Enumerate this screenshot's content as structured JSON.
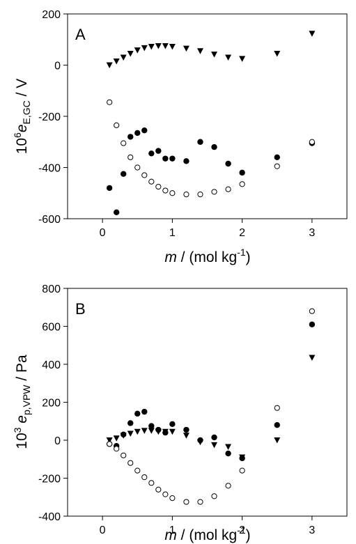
{
  "chart_data": [
    {
      "panel": "A",
      "type": "scatter",
      "title": "",
      "xlabel": "m / (mol kg-1)",
      "ylabel": "10^6 e_E,GC / V",
      "xlim": [
        -0.5,
        3.5
      ],
      "ylim": [
        -600,
        200
      ],
      "xticks": [
        0,
        1,
        2,
        3
      ],
      "yticks": [
        -600,
        -400,
        -200,
        0,
        200
      ],
      "grid": false,
      "legend": "none",
      "series": [
        {
          "marker": "triangle-down-filled",
          "points": [
            [
              0.1,
              0
            ],
            [
              0.2,
              15
            ],
            [
              0.3,
              30
            ],
            [
              0.4,
              45
            ],
            [
              0.5,
              58
            ],
            [
              0.6,
              67
            ],
            [
              0.7,
              72
            ],
            [
              0.8,
              75
            ],
            [
              0.9,
              75
            ],
            [
              1.0,
              72
            ],
            [
              1.2,
              65
            ],
            [
              1.4,
              55
            ],
            [
              1.6,
              42
            ],
            [
              1.8,
              30
            ],
            [
              2.0,
              25
            ],
            [
              2.5,
              45
            ],
            [
              3.0,
              123
            ]
          ]
        },
        {
          "marker": "circle-filled",
          "points": [
            [
              0.1,
              -480
            ],
            [
              0.2,
              -575
            ],
            [
              0.3,
              -425
            ],
            [
              0.4,
              -280
            ],
            [
              0.5,
              -265
            ],
            [
              0.6,
              -255
            ],
            [
              0.7,
              -345
            ],
            [
              0.8,
              -335
            ],
            [
              0.9,
              -365
            ],
            [
              1.0,
              -365
            ],
            [
              1.2,
              -375
            ],
            [
              1.4,
              -300
            ],
            [
              1.6,
              -320
            ],
            [
              1.8,
              -385
            ],
            [
              2.0,
              -420
            ],
            [
              2.5,
              -360
            ],
            [
              3.0,
              -305
            ]
          ]
        },
        {
          "marker": "circle-open",
          "points": [
            [
              0.1,
              -145
            ],
            [
              0.2,
              -235
            ],
            [
              0.3,
              -305
            ],
            [
              0.4,
              -360
            ],
            [
              0.5,
              -400
            ],
            [
              0.6,
              -430
            ],
            [
              0.7,
              -455
            ],
            [
              0.8,
              -475
            ],
            [
              0.9,
              -490
            ],
            [
              1.0,
              -500
            ],
            [
              1.2,
              -505
            ],
            [
              1.4,
              -505
            ],
            [
              1.6,
              -495
            ],
            [
              1.8,
              -485
            ],
            [
              2.0,
              -465
            ],
            [
              2.5,
              -395
            ],
            [
              3.0,
              -300
            ]
          ]
        }
      ]
    },
    {
      "panel": "B",
      "type": "scatter",
      "title": "",
      "xlabel": "m / (mol kg-1)",
      "ylabel": "10^3 e_p,VPW / Pa",
      "xlim": [
        -0.5,
        3.5
      ],
      "ylim": [
        -400,
        800
      ],
      "xticks": [
        0,
        1,
        2,
        3
      ],
      "yticks": [
        -400,
        -200,
        0,
        200,
        400,
        600,
        800
      ],
      "grid": false,
      "legend": "none",
      "series": [
        {
          "marker": "triangle-down-filled",
          "points": [
            [
              0.1,
              0
            ],
            [
              0.2,
              10
            ],
            [
              0.3,
              25
            ],
            [
              0.4,
              35
            ],
            [
              0.5,
              45
            ],
            [
              0.6,
              50
            ],
            [
              0.7,
              50
            ],
            [
              0.8,
              45
            ],
            [
              0.9,
              45
            ],
            [
              1.0,
              45
            ],
            [
              1.2,
              25
            ],
            [
              1.4,
              -10
            ],
            [
              1.6,
              -25
            ],
            [
              1.8,
              -35
            ],
            [
              2.0,
              -90
            ],
            [
              2.5,
              0
            ],
            [
              3.0,
              435
            ]
          ]
        },
        {
          "marker": "circle-filled",
          "points": [
            [
              0.1,
              -20
            ],
            [
              0.2,
              -30
            ],
            [
              0.3,
              30
            ],
            [
              0.4,
              90
            ],
            [
              0.5,
              140
            ],
            [
              0.6,
              150
            ],
            [
              0.7,
              75
            ],
            [
              0.8,
              55
            ],
            [
              0.9,
              40
            ],
            [
              1.0,
              85
            ],
            [
              1.2,
              55
            ],
            [
              1.4,
              0
            ],
            [
              1.6,
              15
            ],
            [
              1.8,
              -70
            ],
            [
              2.0,
              -95
            ],
            [
              2.5,
              80
            ],
            [
              3.0,
              610
            ]
          ]
        },
        {
          "marker": "circle-open",
          "points": [
            [
              0.1,
              -20
            ],
            [
              0.2,
              -45
            ],
            [
              0.3,
              -80
            ],
            [
              0.4,
              -120
            ],
            [
              0.5,
              -160
            ],
            [
              0.6,
              -195
            ],
            [
              0.7,
              -225
            ],
            [
              0.8,
              -260
            ],
            [
              0.9,
              -285
            ],
            [
              1.0,
              -305
            ],
            [
              1.2,
              -325
            ],
            [
              1.4,
              -325
            ],
            [
              1.6,
              -295
            ],
            [
              1.8,
              -240
            ],
            [
              2.0,
              -160
            ],
            [
              2.5,
              170
            ],
            [
              3.0,
              680
            ]
          ]
        }
      ]
    }
  ],
  "panels": [
    {
      "letter": "A",
      "ylabel": {
        "base": "10",
        "exp": "6",
        "sym": "e",
        "sub": "E,GC",
        "unit": " / V"
      },
      "xlabel": {
        "sym": "m",
        "unit": " / (mol kg",
        "exp": "-1",
        "close": ")"
      }
    },
    {
      "letter": "B",
      "ylabel": {
        "base": "10",
        "exp": "3",
        "sym": " e",
        "sub": "p,VPW",
        "unit": " / Pa"
      },
      "xlabel": {
        "sym": "m",
        "unit": " / (mol kg",
        "exp": "-1",
        "close": ")"
      }
    }
  ]
}
